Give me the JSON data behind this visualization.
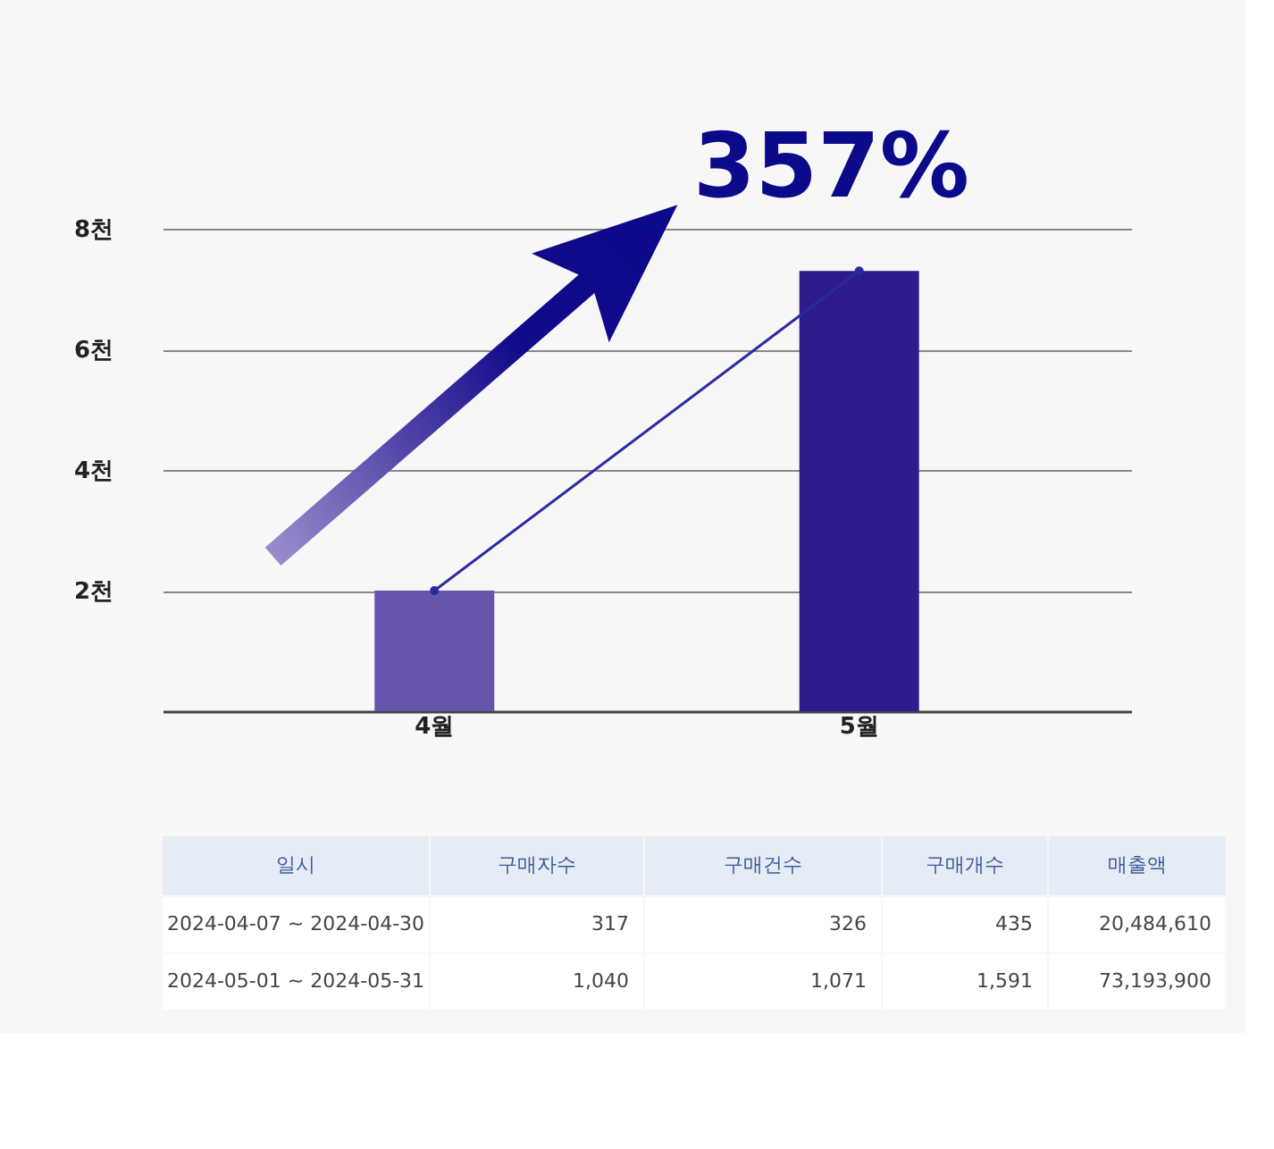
{
  "chart_data": [
    {
      "type": "bar",
      "categories": [
        "4월",
        "5월"
      ],
      "series": [
        {
          "type": "bar",
          "colors": [
            "#6655aa",
            "#2e1c8e"
          ],
          "values": [
            2,
            7.3
          ]
        },
        {
          "type": "line",
          "color": "#2a2aa0",
          "marker": "circle",
          "values": [
            2,
            7.3
          ]
        }
      ],
      "ylim": [
        0,
        8
      ],
      "yticks": [
        {
          "value": 2,
          "label": "2천"
        },
        {
          "value": 4,
          "label": "4천"
        },
        {
          "value": 6,
          "label": "6천"
        },
        {
          "value": 8,
          "label": "8천"
        }
      ],
      "grid": "y",
      "annotations": [
        "357%"
      ]
    },
    {
      "type": "other",
      "annotations": [
        "일시",
        "구매자수",
        "구매건수",
        "구매개수",
        "매출액",
        "2024-04-07 ~ 2024-04-30",
        "317",
        "326",
        "435",
        "20,484,610",
        "2024-05-01 ~ 2024-05-31",
        "1,040",
        "1,071",
        "1,591",
        "73,193,900"
      ]
    }
  ]
}
